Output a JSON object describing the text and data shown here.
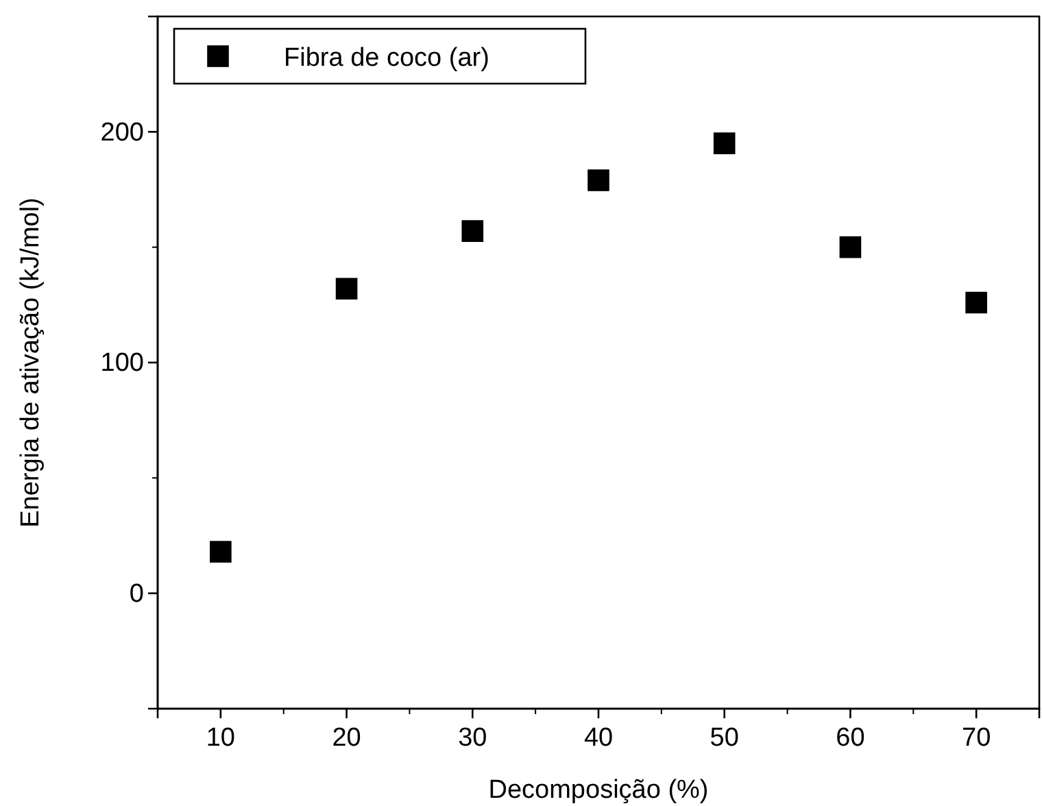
{
  "chart_data": {
    "type": "scatter",
    "xlabel": "Decomposição (%)",
    "ylabel": "Energia de ativação (kJ/mol)",
    "x": [
      10,
      20,
      30,
      40,
      50,
      60,
      70
    ],
    "series": [
      {
        "name": "Fibra de coco (ar)",
        "color": "#000000",
        "values": [
          18,
          132,
          157,
          179,
          195,
          150,
          126
        ]
      }
    ],
    "xlim": [
      5,
      75
    ],
    "xticks": [
      10,
      20,
      30,
      40,
      50,
      60,
      70
    ],
    "ylim": [
      -50,
      250
    ],
    "yticks": [
      0,
      100,
      200
    ],
    "marker": "square",
    "legend": "top left",
    "grid": false
  }
}
